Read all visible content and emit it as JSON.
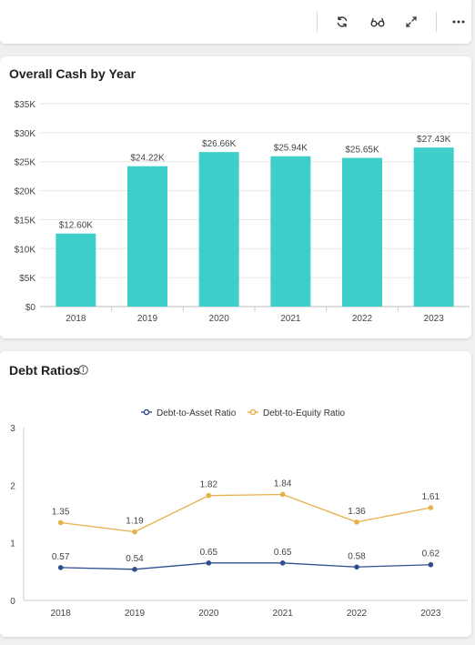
{
  "toolbar": {
    "icons": [
      "refresh-icon",
      "glasses-icon",
      "expand-icon",
      "more-icon"
    ]
  },
  "chart_data": [
    {
      "type": "bar",
      "title": "Overall Cash by Year",
      "categories": [
        "2018",
        "2019",
        "2020",
        "2021",
        "2022",
        "2023"
      ],
      "values": [
        12600,
        24220,
        26660,
        25940,
        25650,
        27430
      ],
      "data_labels": [
        "$12.60K",
        "$24.22K",
        "$26.66K",
        "$25.94K",
        "$25.65K",
        "$27.43K"
      ],
      "ylim": [
        0,
        35000
      ],
      "yticks": [
        0,
        5000,
        10000,
        15000,
        20000,
        25000,
        30000,
        35000
      ],
      "ytick_labels": [
        "$0",
        "$5K",
        "$10K",
        "$15K",
        "$20K",
        "$25K",
        "$30K",
        "$35K"
      ],
      "grid": true,
      "color": "#3ecfcb"
    },
    {
      "type": "line",
      "title": "Debt Ratios",
      "categories": [
        "2018",
        "2019",
        "2020",
        "2021",
        "2022",
        "2023"
      ],
      "series": [
        {
          "name": "Debt-to-Asset Ratio",
          "values": [
            0.57,
            0.54,
            0.65,
            0.65,
            0.58,
            0.62
          ],
          "labels": [
            "0.57",
            "0.54",
            "0.65",
            "0.65",
            "0.58",
            "0.62"
          ],
          "color": "#2f4f8f"
        },
        {
          "name": "Debt-to-Equity Ratio",
          "values": [
            1.35,
            1.19,
            1.82,
            1.84,
            1.36,
            1.61
          ],
          "labels": [
            "1.35",
            "1.19",
            "1.82",
            "1.84",
            "1.36",
            "1.61"
          ],
          "color": "#e8b04a"
        }
      ],
      "ylim": [
        0,
        3
      ],
      "yticks": [
        0,
        1,
        2,
        3
      ],
      "ytick_labels": [
        "0",
        "1",
        "2",
        "3"
      ],
      "legend": "top-center",
      "grid": false
    }
  ]
}
